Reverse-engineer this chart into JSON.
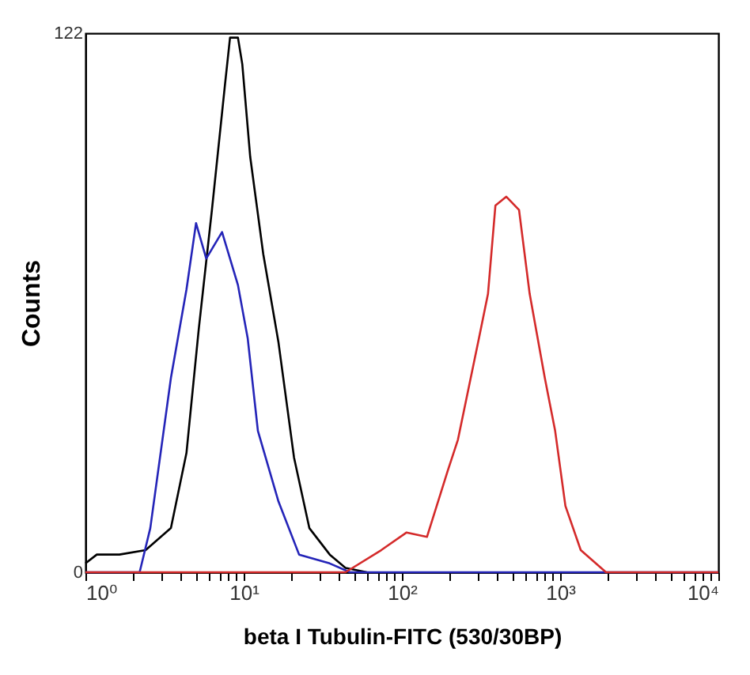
{
  "chart_data": {
    "type": "line",
    "xlabel": "beta I Tubulin-FITC (530/30BP)",
    "ylabel": "Counts",
    "log": "x",
    "grid": false,
    "xlim": [
      1,
      10000
    ],
    "ylim": [
      0,
      122
    ],
    "xticks": [
      {
        "value": 1,
        "label": "10⁰"
      },
      {
        "value": 2,
        "label": null
      },
      {
        "value": 3,
        "label": null
      },
      {
        "value": 4,
        "label": null
      },
      {
        "value": 5,
        "label": null
      },
      {
        "value": 6,
        "label": null
      },
      {
        "value": 7,
        "label": null
      },
      {
        "value": 8,
        "label": null
      },
      {
        "value": 9,
        "label": null
      },
      {
        "value": 10,
        "label": "10¹"
      },
      {
        "value": 20,
        "label": null
      },
      {
        "value": 30,
        "label": null
      },
      {
        "value": 40,
        "label": null
      },
      {
        "value": 50,
        "label": null
      },
      {
        "value": 60,
        "label": null
      },
      {
        "value": 70,
        "label": null
      },
      {
        "value": 80,
        "label": null
      },
      {
        "value": 90,
        "label": null
      },
      {
        "value": 100,
        "label": "10²"
      },
      {
        "value": 200,
        "label": null
      },
      {
        "value": 300,
        "label": null
      },
      {
        "value": 400,
        "label": null
      },
      {
        "value": 500,
        "label": null
      },
      {
        "value": 600,
        "label": null
      },
      {
        "value": 700,
        "label": null
      },
      {
        "value": 800,
        "label": null
      },
      {
        "value": 900,
        "label": null
      },
      {
        "value": 1000,
        "label": "10³"
      },
      {
        "value": 2000,
        "label": null
      },
      {
        "value": 3000,
        "label": null
      },
      {
        "value": 4000,
        "label": null
      },
      {
        "value": 5000,
        "label": null
      },
      {
        "value": 6000,
        "label": null
      },
      {
        "value": 7000,
        "label": null
      },
      {
        "value": 8000,
        "label": null
      },
      {
        "value": 9000,
        "label": null
      },
      {
        "value": 10000,
        "label": "10⁴"
      }
    ],
    "yticks": [
      0,
      122
    ],
    "series": [
      {
        "color": "#000000",
        "x": [
          1,
          1.18,
          1.64,
          2.4,
          3.47,
          4.35,
          5.2,
          6.3,
          7.6,
          8.2,
          9.2,
          9.8,
          11,
          13.3,
          16.6,
          20.8,
          26,
          35,
          44,
          60
        ],
        "values": [
          2,
          4,
          4,
          5,
          10,
          27,
          55,
          82,
          110,
          121,
          121,
          115,
          94,
          72,
          52,
          26,
          10,
          4,
          1,
          0
        ]
      },
      {
        "color": "#2424b8",
        "x": [
          1,
          2.2,
          2.57,
          3.47,
          4.35,
          5,
          5.8,
          7.3,
          9.2,
          10.6,
          12.3,
          16.6,
          22.4,
          35,
          47,
          10000
        ],
        "values": [
          0,
          0,
          10,
          44,
          64,
          79,
          71,
          77,
          65,
          53,
          32,
          16,
          4,
          2,
          0,
          0
        ]
      },
      {
        "color": "#d42a2a",
        "x": [
          1,
          44,
          74,
          107,
          144,
          195,
          226,
          307,
          350,
          390,
          457,
          550,
          642,
          800,
          930,
          1080,
          1350,
          1950,
          10000
        ],
        "values": [
          0,
          0,
          5,
          9,
          8,
          23,
          30,
          53,
          63,
          83,
          85,
          82,
          63,
          44,
          32,
          15,
          5,
          0,
          0
        ]
      }
    ]
  }
}
